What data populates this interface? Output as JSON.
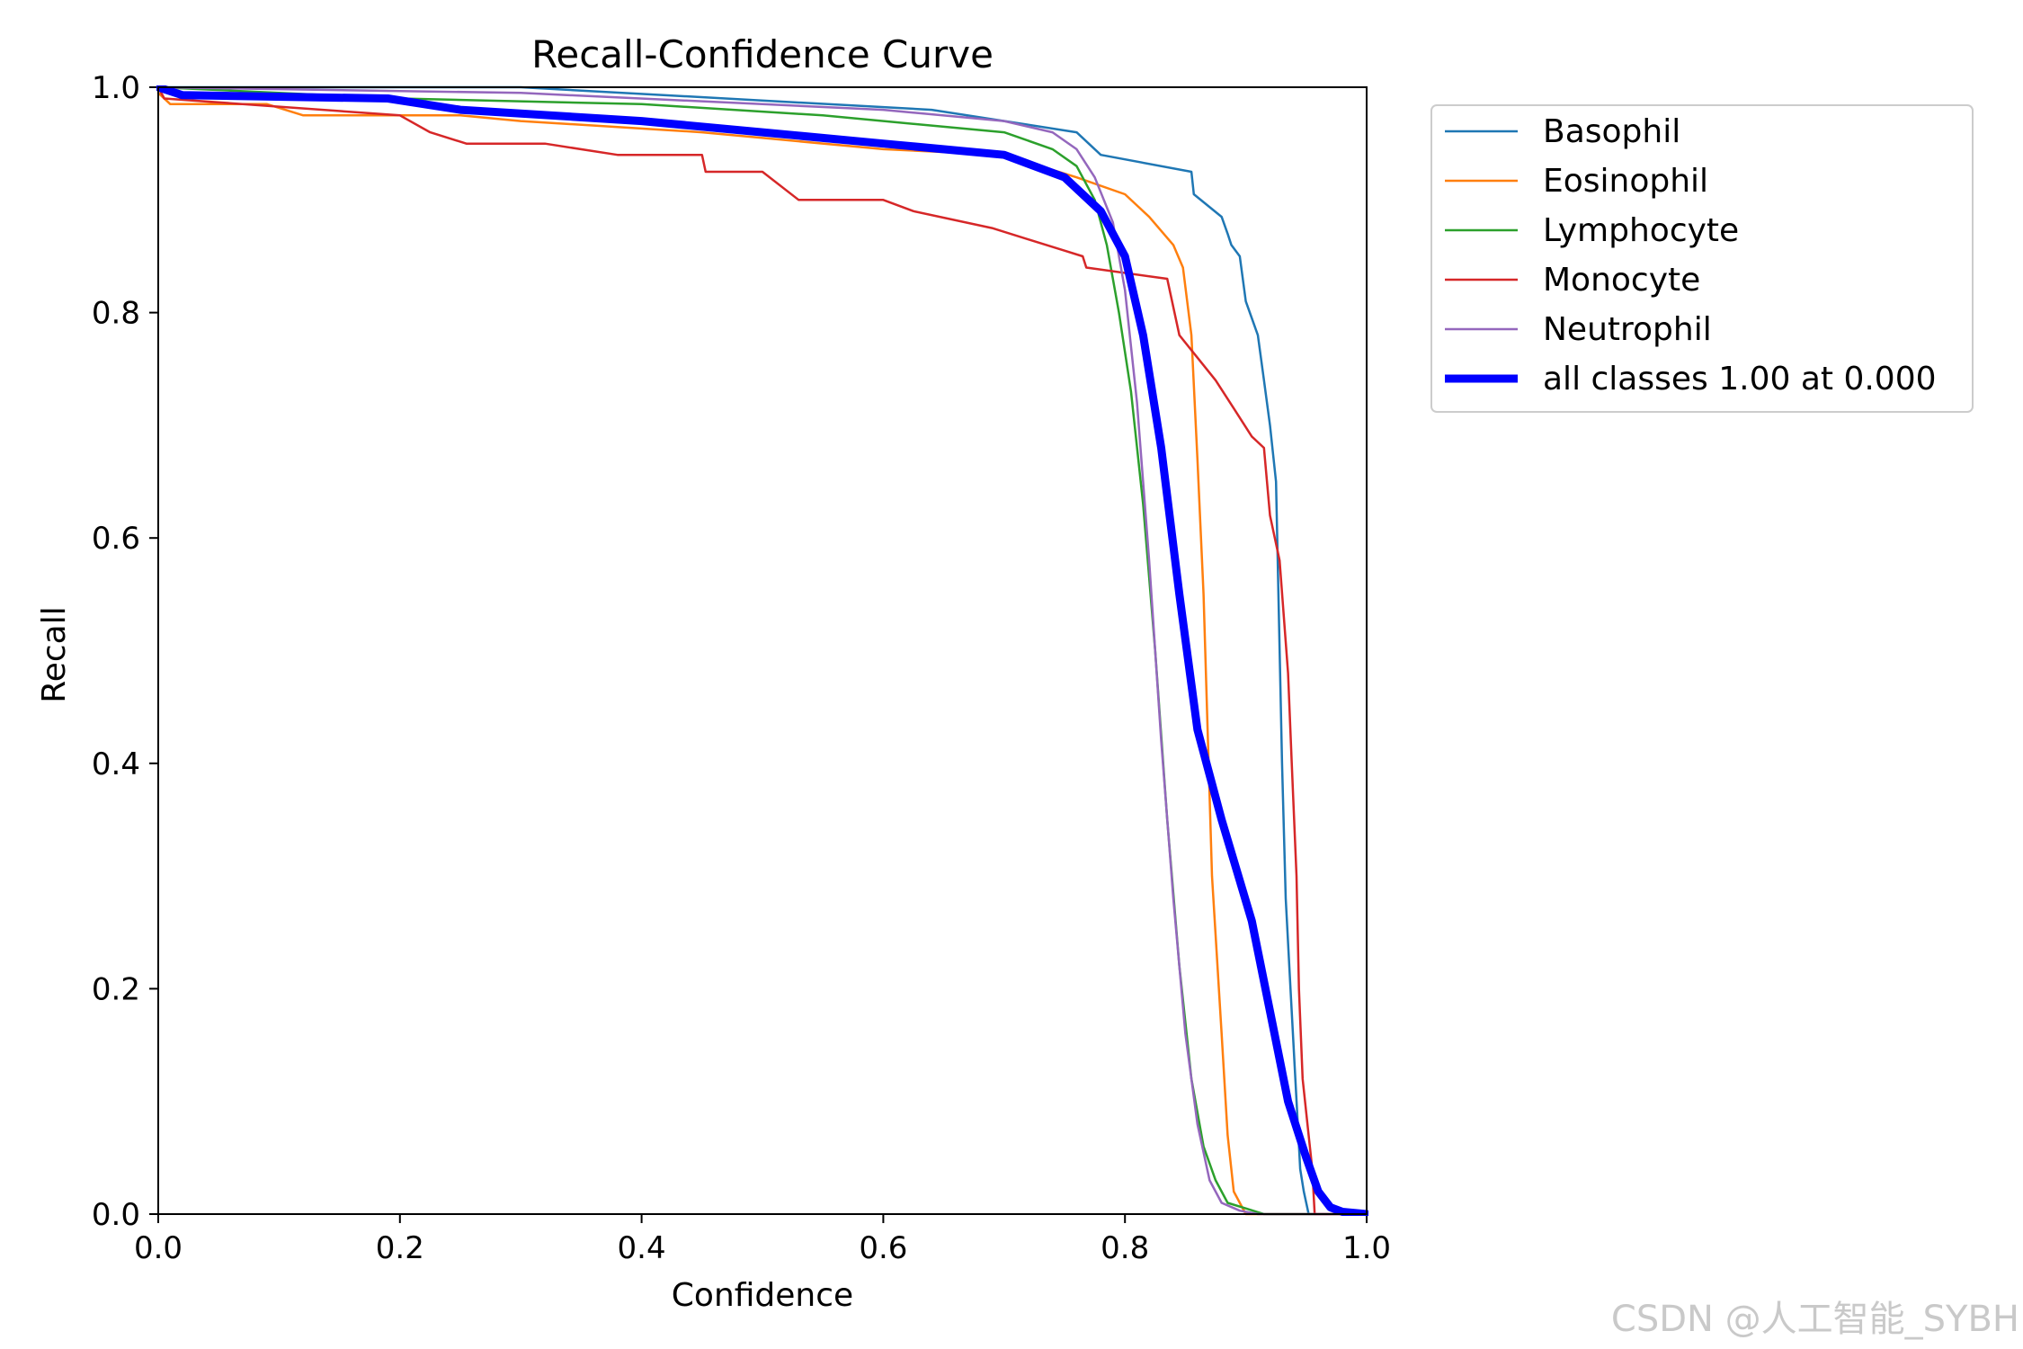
{
  "watermark": "CSDN @人工智能_SYBH",
  "chart_data": {
    "type": "line",
    "title": "Recall-Confidence Curve",
    "xlabel": "Confidence",
    "ylabel": "Recall",
    "xlim": [
      0,
      1
    ],
    "ylim": [
      0,
      1
    ],
    "xticks": [
      "0.0",
      "0.2",
      "0.4",
      "0.6",
      "0.8",
      "1.0"
    ],
    "yticks": [
      "0.0",
      "0.2",
      "0.4",
      "0.6",
      "0.8",
      "1.0"
    ],
    "legend_position": "outside-top-right",
    "series": [
      {
        "name": "Basophil",
        "color": "#1f77b4",
        "bold": false,
        "x": [
          0,
          0.3,
          0.64,
          0.76,
          0.78,
          0.855,
          0.857,
          0.88,
          0.885,
          0.888,
          0.895,
          0.9,
          0.91,
          0.915,
          0.92,
          0.925,
          0.93,
          0.933,
          0.937,
          0.945,
          0.948,
          0.952,
          1.0
        ],
        "y": [
          1.0,
          1.0,
          0.98,
          0.96,
          0.94,
          0.925,
          0.905,
          0.885,
          0.87,
          0.86,
          0.85,
          0.81,
          0.78,
          0.74,
          0.7,
          0.65,
          0.4,
          0.28,
          0.2,
          0.04,
          0.02,
          0.0,
          0.0
        ]
      },
      {
        "name": "Eosinophil",
        "color": "#ff7f0e",
        "bold": false,
        "x": [
          0,
          0.01,
          0.09,
          0.12,
          0.25,
          0.3,
          0.45,
          0.6,
          0.7,
          0.76,
          0.8,
          0.82,
          0.84,
          0.848,
          0.855,
          0.86,
          0.865,
          0.872,
          0.88,
          0.885,
          0.89,
          0.9,
          1.0
        ],
        "y": [
          0.995,
          0.985,
          0.985,
          0.975,
          0.975,
          0.97,
          0.96,
          0.945,
          0.94,
          0.92,
          0.905,
          0.885,
          0.86,
          0.84,
          0.78,
          0.67,
          0.55,
          0.3,
          0.16,
          0.07,
          0.02,
          0.0,
          0.0
        ]
      },
      {
        "name": "Lymphocyte",
        "color": "#2ca02c",
        "bold": false,
        "x": [
          0,
          0.2,
          0.4,
          0.55,
          0.65,
          0.7,
          0.74,
          0.76,
          0.775,
          0.785,
          0.795,
          0.805,
          0.815,
          0.825,
          0.835,
          0.845,
          0.855,
          0.865,
          0.875,
          0.885,
          0.9,
          0.915,
          1.0
        ],
        "y": [
          1.0,
          0.99,
          0.985,
          0.975,
          0.965,
          0.96,
          0.945,
          0.93,
          0.9,
          0.86,
          0.8,
          0.73,
          0.63,
          0.5,
          0.35,
          0.22,
          0.12,
          0.06,
          0.03,
          0.01,
          0.005,
          0.0,
          0.0
        ]
      },
      {
        "name": "Monocyte",
        "color": "#d62728",
        "bold": false,
        "x": [
          0,
          0.005,
          0.2,
          0.225,
          0.255,
          0.32,
          0.38,
          0.45,
          0.453,
          0.5,
          0.53,
          0.6,
          0.625,
          0.69,
          0.72,
          0.75,
          0.765,
          0.768,
          0.835,
          0.845,
          0.86,
          0.875,
          0.89,
          0.905,
          0.915,
          0.92,
          0.928,
          0.935,
          0.938,
          0.942,
          0.944,
          0.947,
          0.955,
          0.957,
          1.0
        ],
        "y": [
          1.0,
          0.99,
          0.975,
          0.96,
          0.95,
          0.95,
          0.94,
          0.94,
          0.925,
          0.925,
          0.9,
          0.9,
          0.89,
          0.875,
          0.865,
          0.855,
          0.85,
          0.84,
          0.83,
          0.78,
          0.76,
          0.74,
          0.715,
          0.69,
          0.68,
          0.62,
          0.58,
          0.48,
          0.4,
          0.3,
          0.2,
          0.12,
          0.04,
          0.0,
          0.0
        ]
      },
      {
        "name": "Neutrophil",
        "color": "#9467bd",
        "bold": false,
        "x": [
          0,
          0.3,
          0.5,
          0.6,
          0.7,
          0.74,
          0.76,
          0.775,
          0.79,
          0.8,
          0.81,
          0.82,
          0.83,
          0.84,
          0.85,
          0.86,
          0.87,
          0.88,
          0.895,
          0.91,
          1.0
        ],
        "y": [
          1.0,
          0.995,
          0.985,
          0.98,
          0.97,
          0.96,
          0.945,
          0.92,
          0.88,
          0.82,
          0.72,
          0.58,
          0.42,
          0.28,
          0.16,
          0.08,
          0.03,
          0.01,
          0.003,
          0.0,
          0.0
        ]
      },
      {
        "name": "all classes 1.00 at 0.000",
        "color": "#0000ff",
        "bold": true,
        "x": [
          0,
          0.02,
          0.19,
          0.25,
          0.4,
          0.5,
          0.6,
          0.7,
          0.75,
          0.78,
          0.8,
          0.815,
          0.83,
          0.845,
          0.86,
          0.88,
          0.905,
          0.92,
          0.935,
          0.95,
          0.96,
          0.97,
          0.98,
          1.0
        ],
        "y": [
          1.0,
          0.993,
          0.99,
          0.98,
          0.97,
          0.96,
          0.95,
          0.94,
          0.92,
          0.89,
          0.85,
          0.78,
          0.68,
          0.55,
          0.43,
          0.35,
          0.26,
          0.18,
          0.1,
          0.05,
          0.02,
          0.006,
          0.002,
          0.0
        ]
      }
    ]
  }
}
